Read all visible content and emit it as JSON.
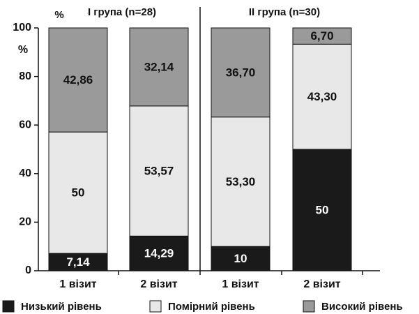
{
  "chart_data": {
    "type": "stacked_bar",
    "group_labels": [
      "I група (n=28)",
      "II група (n=30)"
    ],
    "y_unit_labels": [
      "%",
      "%"
    ],
    "categories": [
      "1 візит",
      "2 візит",
      "1 візит",
      "2 візит"
    ],
    "series": [
      {
        "name": "Низький рівень",
        "color": "#1a1a1a",
        "values": [
          7.14,
          14.29,
          10,
          50
        ],
        "value_labels": [
          "7,14",
          "14,29",
          "10",
          "50"
        ]
      },
      {
        "name": "Помірний рівень",
        "color": "#e8e8e8",
        "values": [
          50,
          53.57,
          53.3,
          43.3
        ],
        "value_labels": [
          "50",
          "53,57",
          "53,30",
          "43,30"
        ]
      },
      {
        "name": "Високий рівень",
        "color": "#9a9a9a",
        "values": [
          42.86,
          32.14,
          36.7,
          6.7
        ],
        "value_labels": [
          "42,86",
          "32,14",
          "36,70",
          "6,70"
        ]
      }
    ],
    "ylim": [
      0,
      100
    ],
    "yticks": [
      0,
      20,
      40,
      60,
      80,
      100
    ]
  }
}
